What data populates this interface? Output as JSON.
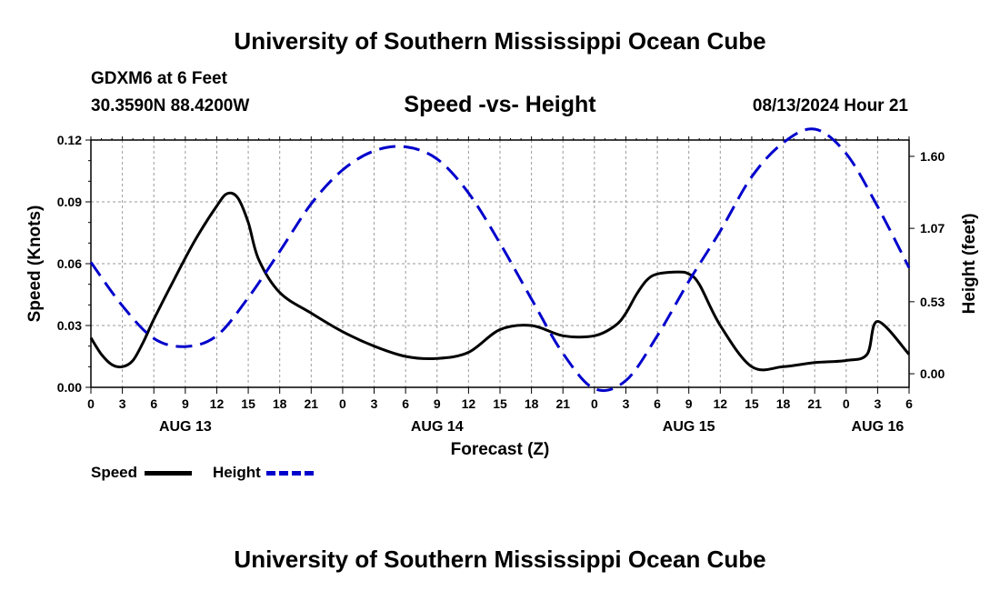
{
  "header": {
    "title": "University of Southern Mississippi Ocean Cube",
    "station": "GDXM6 at 6 Feet",
    "location": "30.3590N  88.4200W",
    "subtitle": "Speed -vs- Height",
    "date": "08/13/2024 Hour 21"
  },
  "footer": {
    "title": "University of Southern Mississippi Ocean Cube"
  },
  "legend": [
    {
      "label": "Speed",
      "color": "#000000",
      "style": "solid"
    },
    {
      "label": "Height",
      "color": "#0000cc",
      "style": "dashed"
    }
  ],
  "chart_data": {
    "type": "line",
    "title": "Speed -vs- Height",
    "xlabel": "Forecast (Z)",
    "ylabel": "Speed (Knots)",
    "y2label": "Height (feet)",
    "xlim": [
      0,
      78
    ],
    "ylim": [
      0,
      0.12
    ],
    "y2lim": [
      -0.1,
      1.72
    ],
    "yticks": [
      0,
      0.03,
      0.06,
      0.09,
      0.12
    ],
    "ytick_labels": [
      "0.00",
      "0.03",
      "0.06",
      "0.09",
      "0.12"
    ],
    "y2ticks": [
      0,
      0.53,
      1.07,
      1.6
    ],
    "y2tick_labels": [
      "0.00",
      "0.53",
      "1.07",
      "1.60"
    ],
    "xtick_labels": [
      "0",
      "3",
      "6",
      "9",
      "12",
      "15",
      "18",
      "21",
      "0",
      "3",
      "6",
      "9",
      "12",
      "15",
      "18",
      "21",
      "0",
      "3",
      "6",
      "9",
      "12",
      "15",
      "18",
      "21",
      "0",
      "3",
      "6"
    ],
    "date_labels": [
      {
        "label": "AUG 13",
        "x": 9
      },
      {
        "label": "AUG 14",
        "x": 33
      },
      {
        "label": "AUG 15",
        "x": 57
      },
      {
        "label": "AUG 16",
        "x": 75
      }
    ],
    "grid": true,
    "legend_position": "bottom-left",
    "series": [
      {
        "name": "Speed",
        "axis": "left",
        "color": "#000000",
        "style": "solid",
        "x": [
          0,
          1,
          2,
          3,
          4,
          5,
          6,
          8,
          10,
          12,
          13,
          14,
          15,
          16,
          18,
          21,
          24,
          27,
          30,
          33,
          36,
          39,
          42,
          45,
          48,
          50,
          51,
          52,
          53,
          54,
          56,
          57,
          58,
          60,
          63,
          66,
          69,
          72,
          74,
          75,
          78
        ],
        "values": [
          0.024,
          0.016,
          0.011,
          0.01,
          0.013,
          0.022,
          0.033,
          0.053,
          0.072,
          0.088,
          0.094,
          0.092,
          0.08,
          0.062,
          0.046,
          0.036,
          0.027,
          0.02,
          0.015,
          0.014,
          0.017,
          0.028,
          0.03,
          0.025,
          0.025,
          0.03,
          0.036,
          0.045,
          0.052,
          0.055,
          0.056,
          0.055,
          0.05,
          0.03,
          0.01,
          0.01,
          0.012,
          0.013,
          0.016,
          0.032,
          0.016
        ]
      },
      {
        "name": "Height",
        "axis": "right",
        "color": "#0000cc",
        "style": "dashed",
        "x": [
          0,
          3,
          6,
          9,
          12,
          15,
          18,
          21,
          24,
          27,
          30,
          33,
          36,
          39,
          42,
          45,
          48,
          51,
          54,
          57,
          60,
          63,
          66,
          69,
          72,
          75,
          78
        ],
        "values": [
          0.82,
          0.5,
          0.26,
          0.2,
          0.28,
          0.56,
          0.9,
          1.25,
          1.5,
          1.64,
          1.67,
          1.58,
          1.33,
          0.96,
          0.55,
          0.15,
          -0.11,
          -0.05,
          0.28,
          0.68,
          1.05,
          1.45,
          1.7,
          1.8,
          1.62,
          1.23,
          0.78
        ]
      }
    ]
  }
}
